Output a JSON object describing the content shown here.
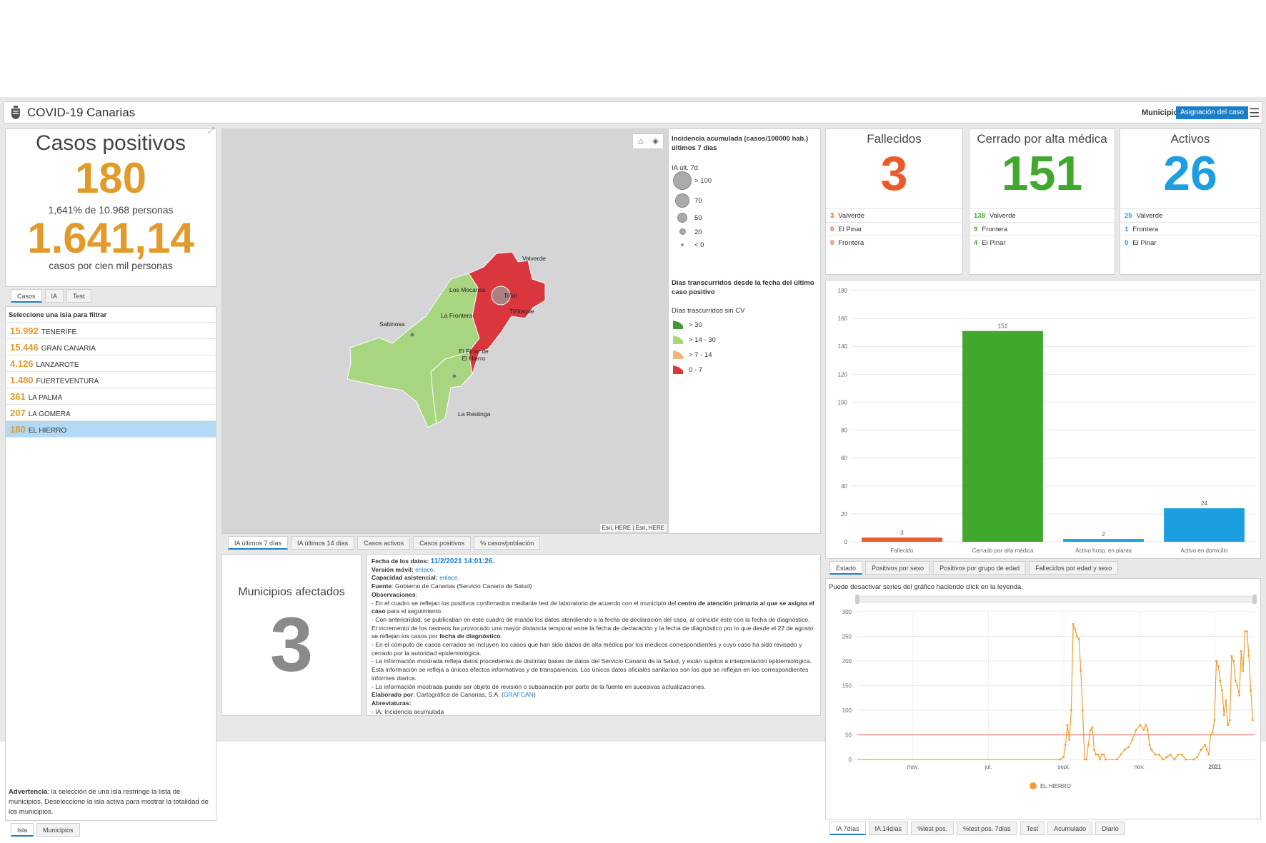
{
  "header": {
    "title": "COVID-19 Canarias",
    "municipio_label": "Municipio",
    "asignacion_button": "Asignación del caso"
  },
  "casos": {
    "title": "Casos positivos",
    "value": "180",
    "pct_text": "1,641% de 10.968 personas",
    "rate": "1.641,14",
    "rate_text": "casos por cien mil personas",
    "tabs": [
      "Casos",
      "IA",
      "Test"
    ]
  },
  "islands": {
    "header": "Seleccione una isla para filtrar",
    "items": [
      {
        "n": "15.992",
        "name": "TENERIFE"
      },
      {
        "n": "15.446",
        "name": "GRAN CANARIA"
      },
      {
        "n": "4.126",
        "name": "LANZAROTE"
      },
      {
        "n": "1.480",
        "name": "FUERTEVENTURA"
      },
      {
        "n": "361",
        "name": "LA PALMA"
      },
      {
        "n": "207",
        "name": "LA GOMERA"
      },
      {
        "n": "180",
        "name": "EL HIERRO"
      }
    ],
    "warning_bold": "Advertencia",
    "warning_text": ": la selección de una isla restringe la lista de municipios. Deseleccione la isla activa para mostrar la totalidad de los municipios.",
    "tabs": [
      "Isla",
      "Municipios"
    ]
  },
  "map": {
    "places": [
      "Valverde",
      "Tiñor",
      "Tiñitaque",
      "Los Mocanes",
      "La Frontera",
      "Sabinosa",
      "El Pinar de El Hierro",
      "La Restinga"
    ],
    "attribution": "Esri, HERE | Esri, HERE",
    "tabs": [
      "IA últimos 7 días",
      "IA últimos 14 días",
      "Casos activos",
      "Casos positivos",
      "% casos/población"
    ]
  },
  "legend": {
    "title": "Incidencia acumulada (casos/100000 hab.) últimos 7 días",
    "sub": "IA últ. 7d",
    "sizes": [
      "> 100",
      "70",
      "50",
      "20",
      "< 0"
    ],
    "title2": "Días transcurridos desde la fecha del último caso positivo",
    "sub2": "Días trascurridos sin CV",
    "classes": [
      {
        "label": "> 30",
        "color": "#3c9b35"
      },
      {
        "label": "> 14 - 30",
        "color": "#a7d67d"
      },
      {
        "label": "> 7 - 14",
        "color": "#f2b47a"
      },
      {
        "label": "0 - 7",
        "color": "#d9363e"
      }
    ]
  },
  "municipios": {
    "title": "Municipios afectados",
    "value": "3"
  },
  "info": {
    "fecha_label": "Fecha de los datos:",
    "fecha_value": "11/2/2021 14:01:26.",
    "movil_label": "Versión móvil:",
    "movil_link": "enlace",
    "capacidad_label": "Capacidad asistencial:",
    "capacidad_link": "enlace",
    "fuente_label": "Fuente",
    "fuente_text": ": Gobierno de Canarias (Servicio Canario de Salud)",
    "obs_label": "Observaciones",
    "p1a": "- En el cuadro se reflejan los positivos confirmados mediante test de laboratorio de acuerdo con el municipio del ",
    "p1b": "centro de atención primaria al que se asigna el caso",
    "p1c": " para el seguimiento.",
    "p2a": "- Con anterioridad, se publicaban en este cuadro de mando los datos atendiendo a la fecha de declaración del caso, al coincidir éste con la fecha de diagnóstico. El incremento de los rastreos ha provocado una mayor distancia temporal entre la fecha de declaración y la fecha de diagnóstico por lo que desde el 22 de agosto se reflejan los casos por ",
    "p2b": "fecha de diagnóstico",
    "p3": "- En el cómputo de casos cerrados se incluyen los casos que han sido dados de alta médica por los médicos correspondientes y cuyo caso ha sido revisado y cerrado por la autoridad epidemiológica.",
    "p4": "- La información mostrada refleja datos procedentes de distintas bases de datos del Servicio Canario de la Salud, y están sujetos a interpretación epidemiológica. Esta información se refleja a únicos efectos informativos y de transparencia. Los únicos datos oficiales sanitarios son los que se reflejan en los correspondientes informes diarios.",
    "p5": "- La información mostrada puede ser objeto de revisión o subsanación por parte de la fuente en sucesivas actualizaciones.",
    "elab_label": "Elaborado por",
    "elab_text": ": Cartográfica de Canarias, S.A. (",
    "elab_link": "GRAFCAN",
    "abrev_label": "Abreviaturas:",
    "abrev_text": "- IA: Incidencia acumulada"
  },
  "stats": [
    {
      "title": "Fallecidos",
      "value": "3",
      "color": "#ea5a2a",
      "rows": [
        {
          "n": "3",
          "name": "Valverde"
        },
        {
          "n": "0",
          "name": "El Pinar"
        },
        {
          "n": "0",
          "name": "Frontera"
        }
      ]
    },
    {
      "title": "Cerrado por alta médica",
      "value": "151",
      "color": "#41a82e",
      "rows": [
        {
          "n": "138",
          "name": "Valverde"
        },
        {
          "n": "9",
          "name": "Frontera"
        },
        {
          "n": "4",
          "name": "El Pinar"
        }
      ]
    },
    {
      "title": "Activos",
      "value": "26",
      "color": "#1c9fe0",
      "rows": [
        {
          "n": "25",
          "name": "Valverde"
        },
        {
          "n": "1",
          "name": "Frontera"
        },
        {
          "n": "0",
          "name": "El Pinar"
        }
      ]
    }
  ],
  "bar_tabs": [
    "Estado",
    "Positivos por sexo",
    "Positivos por grupo de edad",
    "Fallecidos por edad y sexo"
  ],
  "line_note": "Puede desactivar series del gráfico haciendo click en la leyenda.",
  "line_tabs": [
    "IA 7días",
    "IA 14días",
    "%test pos.",
    "%test pos. 7días",
    "Test",
    "Acumulado",
    "Diario"
  ],
  "chart_data": [
    {
      "type": "bar",
      "categories": [
        "Fallecido",
        "Cerrado por alta médica",
        "Activo hosp. en planta",
        "Activo en domicilio"
      ],
      "values": [
        3,
        151,
        2,
        24
      ],
      "colors": [
        "#ea5a2a",
        "#41a82e",
        "#1c9fe0",
        "#1c9fe0"
      ],
      "ylim": [
        0,
        180
      ],
      "yticks": [
        0,
        20,
        40,
        60,
        80,
        100,
        120,
        140,
        160,
        180
      ],
      "grid": true
    },
    {
      "type": "line",
      "series": [
        {
          "name": "EL HIERRO",
          "color": "#f0a030"
        }
      ],
      "xticks": [
        "may.",
        "jul.",
        "sept.",
        "nov.",
        "2021"
      ],
      "yticks": [
        0,
        50,
        100,
        150,
        200,
        250,
        300
      ],
      "ylim": [
        0,
        300
      ],
      "threshold": 50,
      "legend": "bottom",
      "points": [
        [
          0,
          0
        ],
        [
          0.5,
          0
        ],
        [
          0.53,
          0
        ],
        [
          0.54,
          5
        ],
        [
          0.545,
          30
        ],
        [
          0.55,
          70
        ],
        [
          0.555,
          40
        ],
        [
          0.56,
          100
        ],
        [
          0.565,
          275
        ],
        [
          0.57,
          265
        ],
        [
          0.575,
          250
        ],
        [
          0.58,
          245
        ],
        [
          0.585,
          180
        ],
        [
          0.59,
          100
        ],
        [
          0.595,
          0
        ],
        [
          0.6,
          0
        ],
        [
          0.605,
          30
        ],
        [
          0.61,
          60
        ],
        [
          0.615,
          65
        ],
        [
          0.62,
          20
        ],
        [
          0.625,
          10
        ],
        [
          0.63,
          10
        ],
        [
          0.635,
          0
        ],
        [
          0.64,
          10
        ],
        [
          0.645,
          10
        ],
        [
          0.65,
          0
        ],
        [
          0.68,
          0
        ],
        [
          0.69,
          10
        ],
        [
          0.7,
          20
        ],
        [
          0.71,
          25
        ],
        [
          0.72,
          40
        ],
        [
          0.73,
          60
        ],
        [
          0.74,
          70
        ],
        [
          0.75,
          60
        ],
        [
          0.755,
          70
        ],
        [
          0.76,
          60
        ],
        [
          0.765,
          30
        ],
        [
          0.77,
          20
        ],
        [
          0.78,
          10
        ],
        [
          0.79,
          10
        ],
        [
          0.8,
          0
        ],
        [
          0.81,
          5
        ],
        [
          0.82,
          10
        ],
        [
          0.83,
          0
        ],
        [
          0.84,
          10
        ],
        [
          0.85,
          10
        ],
        [
          0.86,
          0
        ],
        [
          0.88,
          0
        ],
        [
          0.89,
          5
        ],
        [
          0.9,
          20
        ],
        [
          0.91,
          30
        ],
        [
          0.915,
          20
        ],
        [
          0.92,
          10
        ],
        [
          0.925,
          50
        ],
        [
          0.93,
          55
        ],
        [
          0.935,
          80
        ],
        [
          0.94,
          200
        ],
        [
          0.945,
          190
        ],
        [
          0.95,
          160
        ],
        [
          0.955,
          140
        ],
        [
          0.96,
          90
        ],
        [
          0.965,
          120
        ],
        [
          0.97,
          70
        ],
        [
          0.975,
          80
        ],
        [
          0.98,
          210
        ],
        [
          0.985,
          200
        ],
        [
          0.99,
          160
        ],
        [
          0.995,
          150
        ],
        [
          1.0,
          130
        ],
        [
          1.005,
          220
        ],
        [
          1.01,
          180
        ],
        [
          1.015,
          260
        ],
        [
          1.02,
          260
        ],
        [
          1.025,
          210
        ],
        [
          1.03,
          140
        ],
        [
          1.035,
          80
        ]
      ]
    }
  ]
}
